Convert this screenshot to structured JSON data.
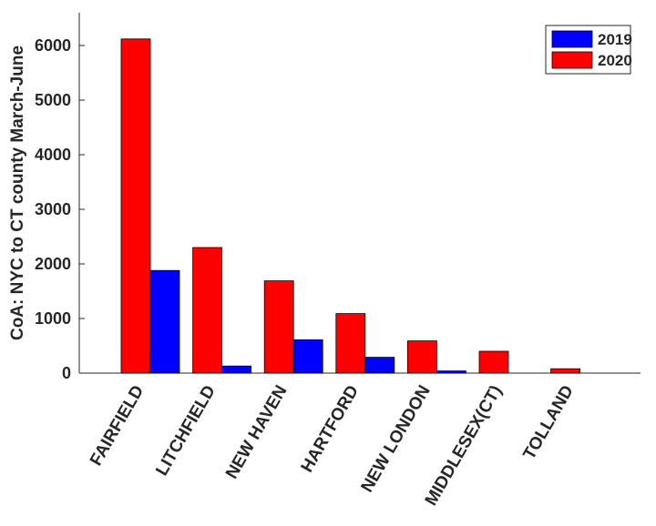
{
  "chart_data": {
    "type": "bar",
    "categories": [
      "FAIRFIELD",
      "LITCHFIELD",
      "NEW HAVEN",
      "HARTFORD",
      "NEW LONDON",
      "MIDDLESEX(CT)",
      "TOLLAND"
    ],
    "series": [
      {
        "name": "2019",
        "color": "#0000ff",
        "values": [
          1880,
          130,
          610,
          290,
          40,
          0,
          0
        ]
      },
      {
        "name": "2020",
        "color": "#ff0000",
        "values": [
          6120,
          2300,
          1690,
          1090,
          590,
          400,
          80
        ]
      }
    ],
    "title": "",
    "xlabel": "",
    "ylabel": "CoA: NYC to CT county March-June",
    "ylim": [
      0,
      6600
    ],
    "yticks": [
      0,
      1000,
      2000,
      3000,
      4000,
      5000,
      6000
    ],
    "legend_position": "top-right",
    "grid": false
  }
}
